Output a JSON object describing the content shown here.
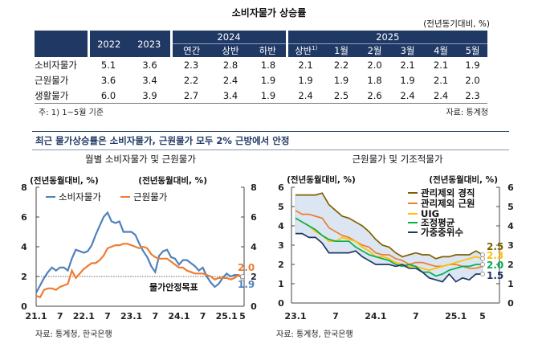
{
  "table": {
    "title": "소비자물가 상승률",
    "unit": "(전년동기대비, %)",
    "years": [
      "2022",
      "2023",
      "2024",
      "2025"
    ],
    "subheaders_2024": [
      "연간",
      "상반",
      "하반"
    ],
    "subheaders_2025": [
      "상반",
      "1월",
      "2월",
      "3월",
      "4월",
      "5월"
    ],
    "footnote_marker": "1)",
    "rows": [
      {
        "label": "소비자물가",
        "values": [
          "5.1",
          "3.6",
          "2.3",
          "2.8",
          "1.8",
          "2.1",
          "2.2",
          "2.0",
          "2.1",
          "2.1",
          "1.9"
        ]
      },
      {
        "label": "근원물가",
        "values": [
          "3.6",
          "3.4",
          "2.2",
          "2.4",
          "1.9",
          "1.9",
          "1.9",
          "1.8",
          "1.9",
          "2.1",
          "2.0"
        ]
      },
      {
        "label": "생활물가",
        "values": [
          "6.0",
          "3.9",
          "2.7",
          "3.4",
          "1.9",
          "2.4",
          "2.5",
          "2.6",
          "2.4",
          "2.4",
          "2.3"
        ]
      }
    ],
    "note": "주: 1) 1~5월 기준",
    "source": "자료: 통계청"
  },
  "section_heading": "최근 물가상승률은 소비자물가, 근원물가 모두 2% 근방에서 안정",
  "chart_data": [
    {
      "type": "line",
      "title": "월별 소비자물가 및 근원물가",
      "ylabel_left": "(전년동월대비, %)",
      "ylabel_right": "(전년동월대비, %)",
      "ylim": [
        0,
        8
      ],
      "yticks": [
        "0",
        "2",
        "4",
        "6",
        "8"
      ],
      "xrange": [
        "2021-01",
        "2025-05"
      ],
      "xticks": [
        "21.1",
        "7",
        "22.1",
        "7",
        "23.1",
        "7",
        "24.1",
        "7",
        "25.1",
        "5"
      ],
      "grid": false,
      "legend_position": "top-left",
      "reference_line": {
        "value": 2,
        "label": "물가안정목표"
      },
      "source": "자료: 통계청, 한국은행",
      "series": [
        {
          "name": "소비자물가",
          "color": "#4f81bd",
          "end_label": "1.9",
          "values": [
            0.9,
            1.4,
            1.9,
            2.3,
            2.6,
            2.4,
            2.6,
            2.6,
            2.4,
            3.2,
            3.8,
            3.7,
            3.6,
            3.7,
            4.1,
            4.8,
            5.4,
            6.0,
            6.3,
            5.7,
            5.6,
            5.7,
            5.0,
            5.0,
            5.0,
            4.8,
            4.2,
            3.7,
            3.3,
            2.7,
            2.3,
            3.4,
            3.7,
            3.8,
            3.3,
            3.2,
            2.8,
            3.1,
            3.1,
            2.9,
            2.7,
            2.4,
            2.6,
            2.0,
            1.6,
            1.3,
            1.5,
            1.9,
            2.2,
            2.0,
            2.1,
            2.1,
            1.9
          ]
        },
        {
          "name": "근원물가",
          "color": "#ed7d31",
          "end_label": "2.0",
          "values": [
            0.7,
            0.6,
            1.1,
            1.2,
            1.2,
            1.1,
            1.3,
            1.4,
            1.5,
            2.4,
            1.9,
            2.2,
            2.5,
            2.7,
            2.9,
            2.9,
            3.1,
            3.4,
            3.9,
            4.0,
            4.1,
            4.1,
            4.2,
            4.2,
            4.1,
            4.0,
            3.9,
            4.0,
            3.9,
            3.5,
            3.3,
            3.2,
            3.2,
            3.2,
            3.0,
            2.8,
            2.6,
            2.6,
            2.4,
            2.3,
            2.2,
            2.2,
            2.2,
            2.1,
            2.0,
            1.8,
            1.9,
            1.9,
            1.9,
            1.8,
            1.9,
            2.1,
            2.0
          ]
        }
      ]
    },
    {
      "type": "line",
      "title": "근원물가 및 기조적물가",
      "ylabel_left": "(전년동월대비, %)",
      "ylabel_right": "(전년동월대비, %)",
      "ylim": [
        0,
        6
      ],
      "yticks": [
        "0",
        "1",
        "2",
        "3",
        "4",
        "5",
        "6"
      ],
      "xrange": [
        "2023-01",
        "2025-05"
      ],
      "xticks": [
        "23.1",
        "7",
        "24.1",
        "7",
        "25.1",
        "5"
      ],
      "grid": false,
      "legend_position": "top-right",
      "band": "shaded range between highest and lowest series",
      "band_color": "#dce6f2",
      "source": "자료: 통계청, 한국은행",
      "series": [
        {
          "name": "관리제외 경직",
          "color": "#7f6000",
          "end_label": "2.5",
          "values": [
            5.6,
            5.6,
            5.6,
            5.6,
            5.7,
            5.1,
            4.8,
            4.5,
            4.4,
            4.2,
            4.0,
            3.7,
            3.3,
            3.0,
            2.9,
            2.6,
            2.4,
            2.5,
            2.6,
            2.5,
            2.5,
            2.3,
            2.4,
            2.4,
            2.5,
            2.5,
            2.5,
            2.7,
            2.5
          ]
        },
        {
          "name": "관리제외 근원",
          "color": "#ed7d31",
          "end_label": "",
          "values": [
            4.8,
            4.6,
            4.6,
            4.5,
            4.4,
            3.9,
            3.7,
            3.5,
            3.4,
            3.2,
            3.0,
            2.9,
            2.6,
            2.5,
            2.5,
            2.3,
            2.2,
            2.0,
            2.1,
            2.1,
            2.0,
            1.9,
            1.9,
            2.0,
            2.0,
            1.9,
            1.8,
            1.8,
            1.9
          ]
        },
        {
          "name": "UIG",
          "color": "#ffc000",
          "end_label": "2.3",
          "values": [
            4.4,
            4.2,
            4.0,
            3.7,
            3.5,
            3.2,
            3.2,
            3.4,
            3.3,
            3.2,
            2.9,
            2.7,
            2.4,
            2.4,
            2.3,
            2.1,
            2.0,
            1.9,
            1.9,
            1.8,
            1.7,
            1.8,
            1.9,
            2.0,
            2.1,
            2.2,
            2.3,
            2.4,
            2.3
          ]
        },
        {
          "name": "조정평균",
          "color": "#00b050",
          "end_label": "2.0",
          "values": [
            4.4,
            4.2,
            4.0,
            3.8,
            3.5,
            3.3,
            3.2,
            3.2,
            3.2,
            2.9,
            2.7,
            2.5,
            2.4,
            2.3,
            2.2,
            2.0,
            1.9,
            2.0,
            1.9,
            1.6,
            1.6,
            1.4,
            1.5,
            1.7,
            1.8,
            1.9,
            1.9,
            2.0,
            2.0
          ]
        },
        {
          "name": "가중중위수",
          "color": "#1f3864",
          "end_label": "1.5",
          "values": [
            3.6,
            3.6,
            3.4,
            3.4,
            3.1,
            2.6,
            2.6,
            2.6,
            2.6,
            2.7,
            2.4,
            2.2,
            2.0,
            2.0,
            2.0,
            1.9,
            2.0,
            1.8,
            1.8,
            1.6,
            1.3,
            1.2,
            1.1,
            1.5,
            1.1,
            1.3,
            1.2,
            1.5,
            1.5
          ]
        }
      ]
    }
  ]
}
